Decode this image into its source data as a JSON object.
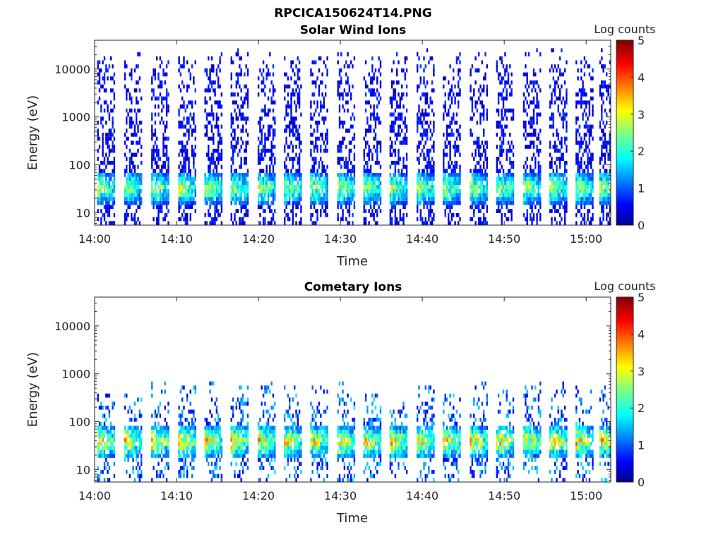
{
  "figure": {
    "title": "RPCICA150624T14.PNG"
  },
  "chart_data": [
    {
      "type": "heatmap",
      "title": "Solar Wind Ions",
      "xlabel": "Time",
      "ylabel": "Energy (eV)",
      "x_ticks": [
        "14:00",
        "14:10",
        "14:20",
        "14:30",
        "14:40",
        "14:50",
        "15:00"
      ],
      "x_range_minutes": [
        0,
        63
      ],
      "y_scale": "log",
      "y_range": [
        5.5,
        40000
      ],
      "y_ticks": [
        10,
        100,
        1000,
        10000
      ],
      "y_tick_labels": [
        "10",
        "100",
        "1000",
        "10000"
      ],
      "colorbar": {
        "label": "Log counts",
        "range": [
          0,
          5
        ],
        "ticks": [
          "0",
          "1",
          "2",
          "3",
          "4",
          "5"
        ],
        "colormap": "jet"
      },
      "sweep_start_minutes": [
        0.3,
        3.6,
        6.9,
        10.2,
        13.4,
        16.6,
        19.9,
        23.1,
        26.3,
        29.6,
        32.8,
        36.0,
        39.3,
        42.5,
        45.8,
        49.0,
        52.3,
        55.5,
        58.7,
        61.6
      ],
      "peak_energy_ev": 30,
      "peak_log_counts": 3.2,
      "background_log_counts": 0.5,
      "max_energy_ev": 15000
    },
    {
      "type": "heatmap",
      "title": "Cometary Ions",
      "xlabel": "Time",
      "ylabel": "Energy (eV)",
      "x_ticks": [
        "14:00",
        "14:10",
        "14:20",
        "14:30",
        "14:40",
        "14:50",
        "15:00"
      ],
      "x_range_minutes": [
        0,
        63
      ],
      "y_scale": "log",
      "y_range": [
        5.5,
        40000
      ],
      "y_ticks": [
        10,
        100,
        1000,
        10000
      ],
      "y_tick_labels": [
        "10",
        "100",
        "1000",
        "10000"
      ],
      "colorbar": {
        "label": "Log counts",
        "range": [
          0,
          5
        ],
        "ticks": [
          "0",
          "1",
          "2",
          "3",
          "4",
          "5"
        ],
        "colormap": "jet"
      },
      "sweep_start_minutes": [
        0.3,
        3.6,
        6.9,
        10.2,
        13.4,
        16.6,
        19.9,
        23.1,
        26.3,
        29.6,
        32.8,
        36.0,
        39.3,
        42.5,
        45.8,
        49.0,
        52.3,
        55.5,
        58.7,
        61.6
      ],
      "peak_energy_ev": 35,
      "peak_log_counts": 3.8,
      "background_log_counts": 1.0,
      "max_energy_ev": 500
    }
  ]
}
